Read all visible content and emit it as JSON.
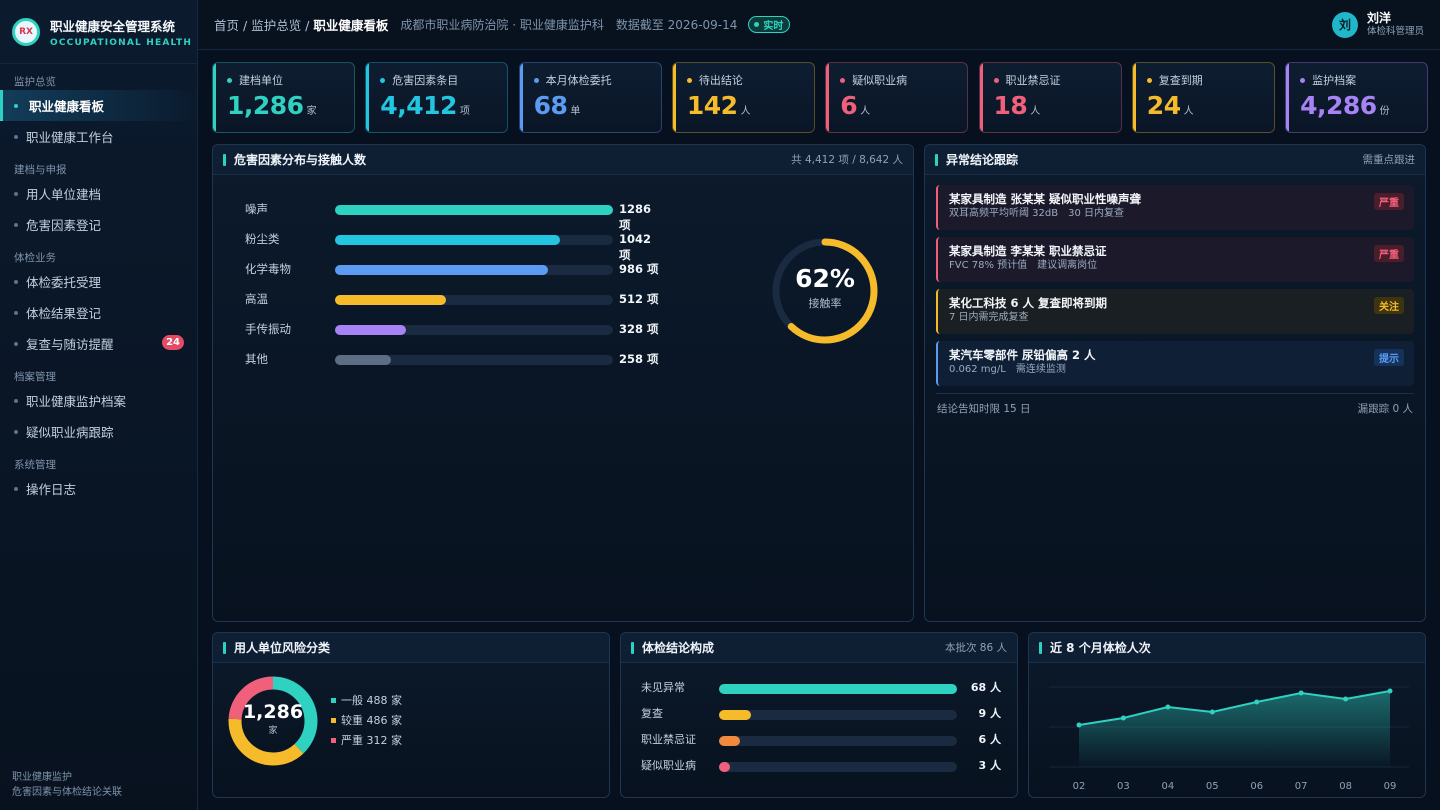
{
  "sidebar": {
    "brand_title": "职业健康安全管理系统",
    "brand_sub": "OCCUPATIONAL HEALTH",
    "brand_logo": "RX",
    "groups": [
      {
        "label": "监护总览",
        "items": [
          {
            "label": "职业健康看板",
            "active": true
          },
          {
            "label": "职业健康工作台"
          }
        ]
      },
      {
        "label": "建档与申报",
        "items": [
          {
            "label": "用人单位建档"
          },
          {
            "label": "危害因素登记"
          }
        ]
      },
      {
        "label": "体检业务",
        "items": [
          {
            "label": "体检委托受理"
          },
          {
            "label": "体检结果登记"
          },
          {
            "label": "复查与随访提醒",
            "badge": "24"
          }
        ]
      },
      {
        "label": "档案管理",
        "items": [
          {
            "label": "职业健康监护档案"
          },
          {
            "label": "疑似职业病跟踪"
          }
        ]
      },
      {
        "label": "系统管理",
        "items": [
          {
            "label": "操作日志"
          }
        ]
      }
    ],
    "footer_line1": "职业健康监护",
    "footer_line2": "危害因素与体检结论关联"
  },
  "topbar": {
    "crumb_home": "首页",
    "crumb_mid": "监护总览",
    "crumb_current": "职业健康看板",
    "sep": " / ",
    "org": "成都市职业病防治院 · 职业健康监护科",
    "data_date": "数据截至 2026-09-14",
    "live": "实时",
    "user_name": "刘洋",
    "user_role": "体检科管理员",
    "avatar": "刘"
  },
  "stats": [
    {
      "label": "建档单位",
      "value": "1,286",
      "unit": "家",
      "color": "#2fd1c0"
    },
    {
      "label": "危害因素条目",
      "value": "4,412",
      "unit": "项",
      "color": "#22c6e0"
    },
    {
      "label": "本月体检委托",
      "value": "68",
      "unit": "单",
      "color": "#5b9cf2"
    },
    {
      "label": "待出结论",
      "value": "142",
      "unit": "人",
      "color": "#f6bb2a"
    },
    {
      "label": "疑似职业病",
      "value": "6",
      "unit": "人",
      "color": "#f0607a"
    },
    {
      "label": "职业禁忌证",
      "value": "18",
      "unit": "人",
      "color": "#f0607a"
    },
    {
      "label": "复查到期",
      "value": "24",
      "unit": "人",
      "color": "#f6bb2a"
    },
    {
      "label": "监护档案",
      "value": "4,286",
      "unit": "份",
      "color": "#a783f5"
    }
  ],
  "hazard": {
    "title": "危害因素分布与接触人数",
    "summary": "共 4,412 项 / 8,642 人",
    "rate_value": "62%",
    "rate_label": "接触率",
    "rate_fraction": 0.62,
    "chart_data": {
      "type": "bar",
      "categories": [
        "噪声",
        "粉尘类",
        "化学毒物",
        "高温",
        "手传振动",
        "其他"
      ],
      "values": [
        1286,
        1042,
        986,
        512,
        328,
        258
      ],
      "unit": "项"
    },
    "value_labels": [
      "1286 项",
      "1042 项",
      "986 项",
      "512 项",
      "328 项",
      "258 项"
    ],
    "colors": [
      "#2fd1c0",
      "#22c6e0",
      "#5b9cf2",
      "#f6bb2a",
      "#a783f5",
      "#5d6d84"
    ]
  },
  "abnormal": {
    "title": "异常结论跟踪",
    "right": "需重点跟进",
    "items": [
      {
        "title": "某家具制造 张某某 疑似职业性噪声聋",
        "detail": "双耳高频平均听阈 32dB　30 日内复查",
        "tag": "严重",
        "level": "severe"
      },
      {
        "title": "某家具制造 李某某 职业禁忌证",
        "detail": "FVC 78% 预计值　建议调离岗位",
        "tag": "严重",
        "level": "severe"
      },
      {
        "title": "某化工科技 6 人 复查即将到期",
        "detail": "7 日内需完成复查",
        "tag": "关注",
        "level": "warn"
      },
      {
        "title": "某汽车零部件 尿铅偏高 2 人",
        "detail": "0.062 mg/L　需连续监测",
        "tag": "提示",
        "level": "info"
      }
    ],
    "foot_left": "结论告知时限 15 日",
    "foot_right": "漏跟踪 0 人"
  },
  "risk": {
    "title": "用人单位风险分类",
    "center_value": "1,286",
    "center_unit": "家",
    "chart_data": {
      "type": "pie",
      "labels": [
        "一般",
        "较重",
        "严重"
      ],
      "values": [
        488,
        486,
        312
      ],
      "unit": "家"
    },
    "legend": [
      "一般 488 家",
      "较重 486 家",
      "严重 312 家"
    ],
    "colors": [
      "#2fd1c0",
      "#f6bb2a",
      "#f0607a"
    ]
  },
  "conclusion": {
    "title": "体检结论构成",
    "right": "本批次 86 人",
    "chart_data": {
      "type": "bar",
      "categories": [
        "未见异常",
        "复查",
        "职业禁忌证",
        "疑似职业病"
      ],
      "values": [
        68,
        9,
        6,
        3
      ],
      "unit": "人"
    },
    "value_labels": [
      "68 人",
      "9 人",
      "6 人",
      "3 人"
    ],
    "colors": [
      "#2fd1c0",
      "#f6bb2a",
      "#f08a3c",
      "#f0607a"
    ]
  },
  "trend": {
    "title": "近 8 个月体检人次",
    "chart_data": {
      "type": "area",
      "x": [
        "02",
        "03",
        "04",
        "05",
        "06",
        "07",
        "08",
        "09"
      ],
      "values": [
        42,
        49,
        60,
        55,
        65,
        74,
        68,
        76
      ],
      "ylim": [
        0,
        120
      ]
    },
    "color": "#2fd1c0"
  }
}
